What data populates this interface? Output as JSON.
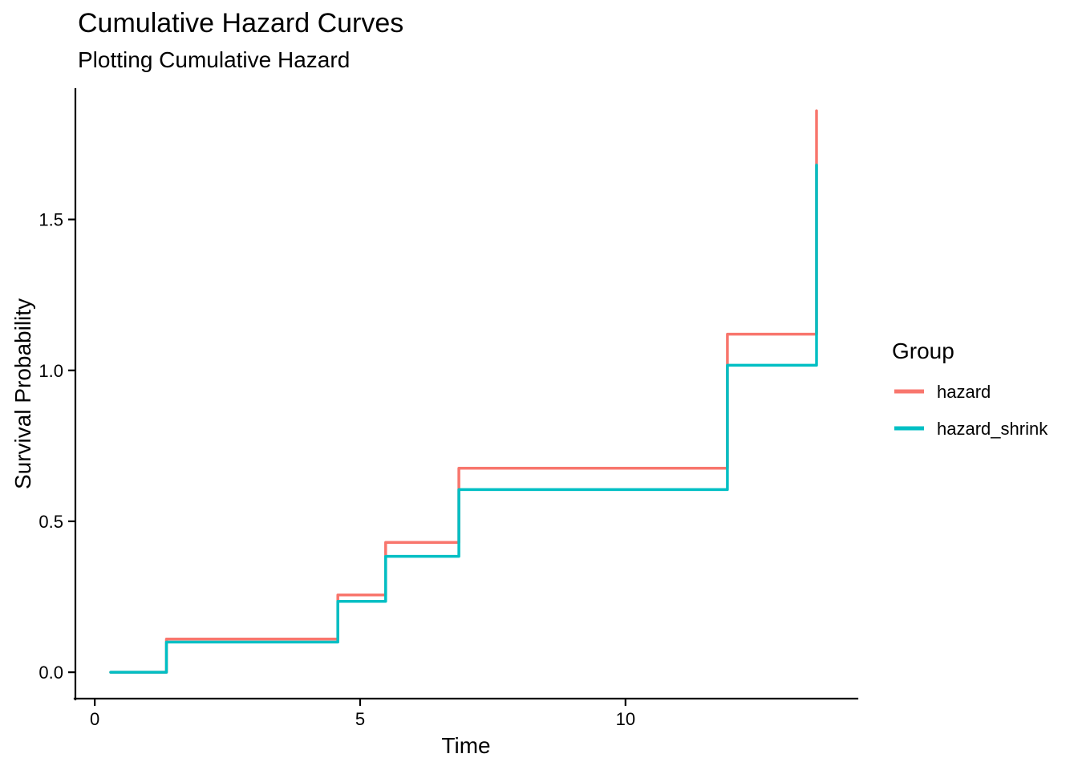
{
  "chart_data": {
    "type": "step",
    "title": "Cumulative Hazard Curves",
    "subtitle": "Plotting Cumulative Hazard",
    "xlabel": "Time",
    "ylabel": "Survival Probability",
    "legend": {
      "title": "Group",
      "position": "right"
    },
    "background_color": "#FFFFFF",
    "axis_color": "#000000",
    "grid": false,
    "xlim": [
      -0.38,
      14.37
    ],
    "ylim": [
      -0.09,
      1.932
    ],
    "xticks": [
      {
        "value": 0,
        "label": "0"
      },
      {
        "value": 5,
        "label": "5"
      },
      {
        "value": 10,
        "label": "10"
      }
    ],
    "yticks": [
      {
        "value": 0.0,
        "label": "0.0"
      },
      {
        "value": 0.5,
        "label": "0.5"
      },
      {
        "value": 1.0,
        "label": "1.0"
      },
      {
        "value": 1.5,
        "label": "1.5"
      }
    ],
    "series": [
      {
        "name": "hazard",
        "color": "#F8766D",
        "x": [
          0.3,
          1.35,
          4.58,
          5.48,
          6.86,
          11.92,
          13.6
        ],
        "y": [
          0.0,
          0.11,
          0.256,
          0.43,
          0.676,
          1.12,
          1.86
        ]
      },
      {
        "name": "hazard_shrink",
        "color": "#00BFC4",
        "x": [
          0.3,
          1.35,
          4.58,
          5.48,
          6.86,
          11.92,
          13.6
        ],
        "y": [
          0.0,
          0.1,
          0.235,
          0.384,
          0.605,
          1.017,
          1.68
        ]
      }
    ]
  }
}
